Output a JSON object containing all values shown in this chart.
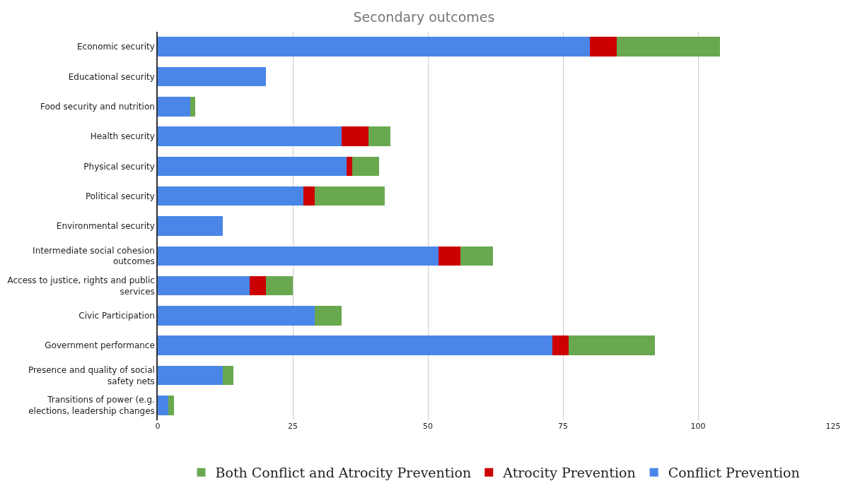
{
  "chart_data": {
    "type": "bar",
    "orientation": "horizontal",
    "stacked": true,
    "title": "Secondary outcomes",
    "categories": [
      "Economic security",
      "Educational security",
      "Food security and nutrition",
      "Health security",
      "Physical security",
      "Political security",
      "Environmental security",
      "Intermediate social cohesion outcomes",
      "Access to justice, rights and public services",
      "Civic Participation",
      "Government performance",
      "Presence and quality of social safety nets",
      "Transitions of power (e.g. elections, leadership changes"
    ],
    "series": [
      {
        "name": "Conflict Prevention",
        "color": "#4a86e8",
        "values": [
          80,
          20,
          6,
          34,
          35,
          27,
          12,
          52,
          17,
          29,
          73,
          12,
          2
        ]
      },
      {
        "name": "Atrocity Prevention",
        "color": "#cc0000",
        "values": [
          5,
          0,
          0,
          5,
          1,
          2,
          0,
          4,
          3,
          0,
          3,
          0,
          0
        ]
      },
      {
        "name": "Both Conflict and Atrocity Prevention",
        "color": "#6aa84f",
        "values": [
          19,
          0,
          1,
          4,
          5,
          13,
          0,
          6,
          5,
          5,
          16,
          2,
          1
        ]
      }
    ],
    "xlim": [
      0,
      125
    ],
    "xticks": [
      0,
      25,
      50,
      75,
      100,
      125
    ],
    "grid": "x",
    "legend": "bottom"
  }
}
